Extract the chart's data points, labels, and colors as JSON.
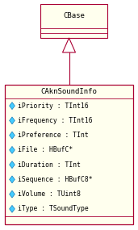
{
  "bg_color": "#ffffff",
  "box_fill": "#ffffee",
  "box_border": "#aa0033",
  "arrow_color": "#aa0033",
  "title_font_size": 6.5,
  "attr_font_size": 5.8,
  "cbase_label": "CBase",
  "child_label": "CAknSoundInfo",
  "attributes": [
    "iPriority : TInt16",
    "iFrequency : TInt16",
    "iPreference : TInt",
    "iFile : HBufC*",
    "iDuration : TInt",
    "iSequence : HBufC8*",
    "iVolume : TUint8",
    "iType : TSoundType"
  ],
  "diamond_fill": "#44ccff",
  "diamond_edge": "#0066aa"
}
